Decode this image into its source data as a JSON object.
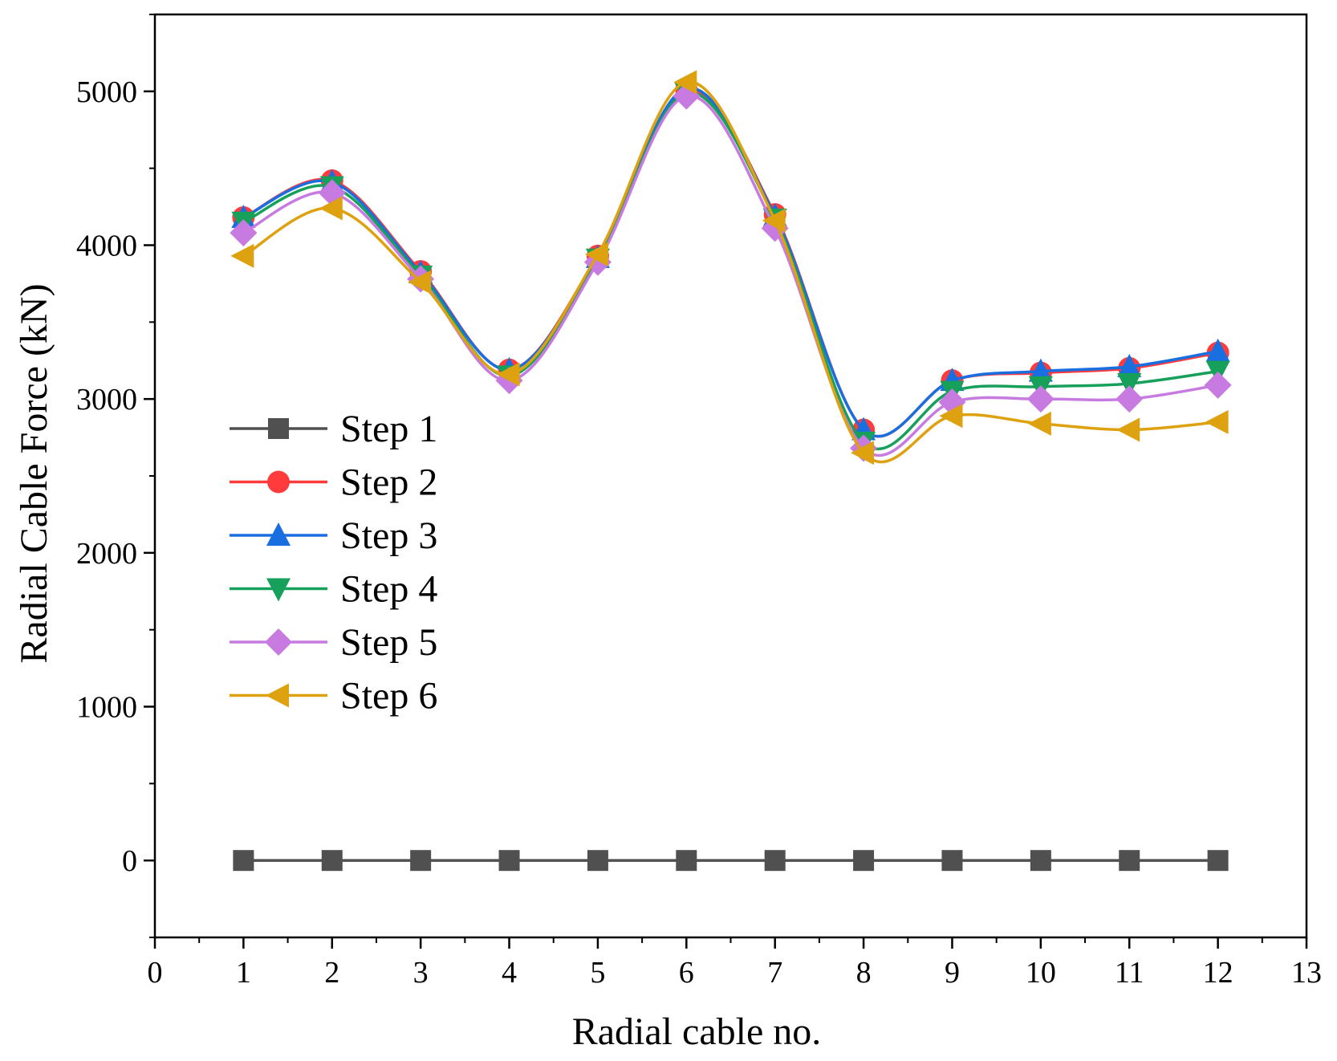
{
  "chart_data": {
    "type": "line",
    "title": "",
    "xlabel": "Radial cable no.",
    "ylabel": "Radial Cable Force (kN)",
    "xlim": [
      0,
      13
    ],
    "ylim": [
      -500,
      5500
    ],
    "xticks": [
      0,
      1,
      2,
      3,
      4,
      5,
      6,
      7,
      8,
      9,
      10,
      11,
      12,
      13
    ],
    "yticks": [
      0,
      1000,
      2000,
      3000,
      4000,
      5000
    ],
    "grid": false,
    "legend_position": "left-middle",
    "x": [
      1,
      2,
      3,
      4,
      5,
      6,
      7,
      8,
      9,
      10,
      11,
      12
    ],
    "series": [
      {
        "name": "Step 1",
        "marker": "square",
        "color": "#505050",
        "smooth": false,
        "values": [
          0,
          0,
          0,
          0,
          0,
          0,
          0,
          0,
          0,
          0,
          0,
          0
        ]
      },
      {
        "name": "Step 2",
        "marker": "circle",
        "color": "#ff3b3b",
        "smooth": true,
        "values": [
          4180,
          4420,
          3830,
          3190,
          3930,
          5010,
          4200,
          2800,
          3120,
          3170,
          3200,
          3300
        ]
      },
      {
        "name": "Step 3",
        "marker": "triangle-up",
        "color": "#1a6fe0",
        "smooth": true,
        "values": [
          4180,
          4410,
          3820,
          3190,
          3920,
          5020,
          4190,
          2800,
          3120,
          3180,
          3210,
          3310
        ]
      },
      {
        "name": "Step 4",
        "marker": "triangle-down",
        "color": "#17a05a",
        "smooth": true,
        "values": [
          4150,
          4380,
          3800,
          3150,
          3910,
          4990,
          4170,
          2720,
          3050,
          3080,
          3100,
          3180
        ]
      },
      {
        "name": "Step 5",
        "marker": "diamond",
        "color": "#c77be0",
        "smooth": true,
        "values": [
          4080,
          4340,
          3780,
          3120,
          3890,
          4970,
          4110,
          2680,
          2980,
          3000,
          3000,
          3090
        ]
      },
      {
        "name": "Step 6",
        "marker": "triangle-left",
        "color": "#dea10f",
        "smooth": true,
        "values": [
          3930,
          4240,
          3760,
          3160,
          3940,
          5060,
          4160,
          2650,
          2890,
          2840,
          2800,
          2850
        ]
      }
    ]
  }
}
